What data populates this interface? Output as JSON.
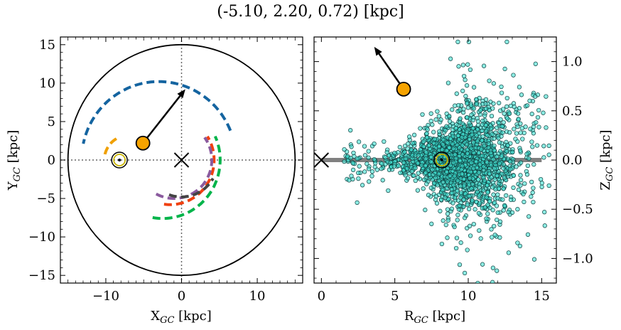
{
  "title": "(-5.10, 2.20, 0.72) [kpc]",
  "chart_data": [
    {
      "type": "scatter",
      "panel": "left",
      "xlabel": "X_GC [kpc]",
      "ylabel": "Y_GC [kpc]",
      "xlim": [
        -16,
        16
      ],
      "ylim": [
        -16,
        16
      ],
      "xticks": [
        "−10",
        "0",
        "10"
      ],
      "yticks": [
        "−15",
        "−10",
        "−5",
        "0",
        "5",
        "10",
        "15"
      ],
      "galaxy_radius": 15,
      "sun_position": [
        -8.2,
        0
      ],
      "galactic_center": [
        0,
        0
      ],
      "object_position": [
        -5.1,
        2.2
      ],
      "velocity_arrow_tip": [
        0.5,
        9.2
      ],
      "arcs": [
        {
          "color": "#1464a0",
          "radius": 10.2,
          "center": [
            -3.0,
            0
          ],
          "theta_deg": [
            22,
            168
          ]
        },
        {
          "color": "#00b44a",
          "radius": 7.6,
          "center": [
            -2.5,
            0
          ],
          "theta_deg": [
            -100,
            25
          ]
        },
        {
          "color": "#f04010",
          "radius": 5.8,
          "center": [
            -1.5,
            0
          ],
          "theta_deg": [
            -98,
            32
          ]
        },
        {
          "color": "#8a5a9e",
          "radius": 5.0,
          "center": [
            -1.0,
            0
          ],
          "theta_deg": [
            -118,
            36
          ]
        },
        {
          "color": "#444444",
          "radius": 4.8,
          "center": [
            0,
            0
          ],
          "theta_deg": [
            -110,
            -30
          ]
        },
        {
          "color": "#f0a000",
          "radius": 3.2,
          "center": [
            -7.0,
            0
          ],
          "theta_deg": [
            120,
            170
          ]
        }
      ]
    },
    {
      "type": "scatter",
      "panel": "right",
      "xlabel": "R_GC [kpc]",
      "ylabel": "Z_GC [kpc]",
      "xlim": [
        -0.5,
        16
      ],
      "ylim": [
        -1.25,
        1.25
      ],
      "xticks": [
        "0",
        "5",
        "10",
        "15"
      ],
      "yticks": [
        "1.0",
        "0.5",
        "0.0",
        "−0.5",
        "−1.0"
      ],
      "disk_plane": {
        "z": 0,
        "x_range": [
          0,
          15
        ]
      },
      "sun_position": [
        8.2,
        0
      ],
      "galactic_center": [
        0,
        0
      ],
      "object_position": [
        5.6,
        0.72
      ],
      "velocity_arrow_tip": [
        3.6,
        1.15
      ],
      "stars": {
        "count": 2000,
        "r_center": 9.5,
        "r_spread": 1.8,
        "z_spread": 0.18,
        "r_range": [
          1.5,
          15.5
        ],
        "z_range": [
          -1.25,
          1.2
        ]
      },
      "star_color": "#40e0d0"
    }
  ]
}
